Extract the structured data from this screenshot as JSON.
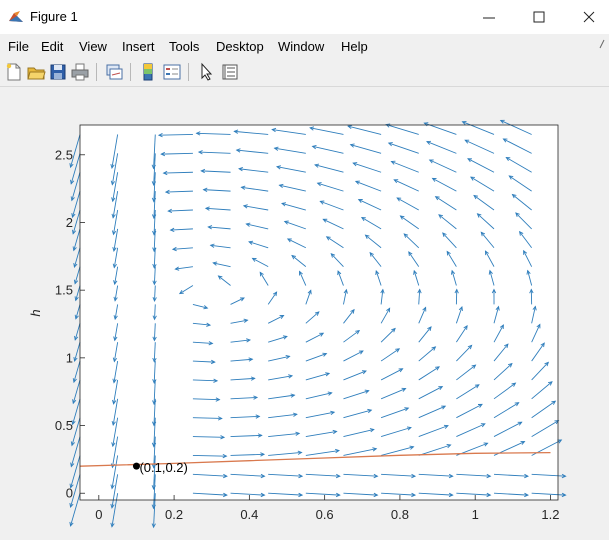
{
  "window": {
    "title": "Figure 1",
    "controls": {
      "minimize": "—",
      "maximize": "☐",
      "close": "✕"
    }
  },
  "menu": {
    "items": [
      "File",
      "Edit",
      "View",
      "Insert",
      "Tools",
      "Desktop",
      "Window",
      "Help"
    ]
  },
  "toolbar": {
    "icons": [
      "new-figure-icon",
      "open-file-icon",
      "save-icon",
      "print-icon",
      "link-plot-icon",
      "insert-colorbar-icon",
      "insert-legend-icon",
      "edit-plot-pointer-icon",
      "property-inspector-icon"
    ]
  },
  "colors": {
    "arrow": "#2f7ebc",
    "curve": "#d9794e",
    "point": "#000000"
  },
  "chart_data": {
    "type": "quiver",
    "title": "",
    "xlabel": "",
    "ylabel": "h",
    "xlim": [
      -0.05,
      1.22
    ],
    "ylim": [
      -0.05,
      2.72
    ],
    "xticks": [
      "0",
      "0.2",
      "0.4",
      "0.6",
      "0.8",
      "1",
      "1.2"
    ],
    "yticks": [
      "0",
      "0.5",
      "1",
      "1.5",
      "2",
      "2.5"
    ],
    "grid": false,
    "vector_field": {
      "x_range": [
        -0.05,
        1.15
      ],
      "y_range": [
        0.0,
        2.65
      ],
      "nx": 13,
      "ny": 20
    },
    "curve": {
      "x": [
        -0.05,
        0.2,
        0.4,
        0.6,
        0.8,
        1.0,
        1.2
      ],
      "y": [
        0.2,
        0.22,
        0.24,
        0.26,
        0.28,
        0.295,
        0.3
      ]
    },
    "marked_point": {
      "x": 0.1,
      "y": 0.2,
      "label": "(0.1,0.2)"
    }
  }
}
